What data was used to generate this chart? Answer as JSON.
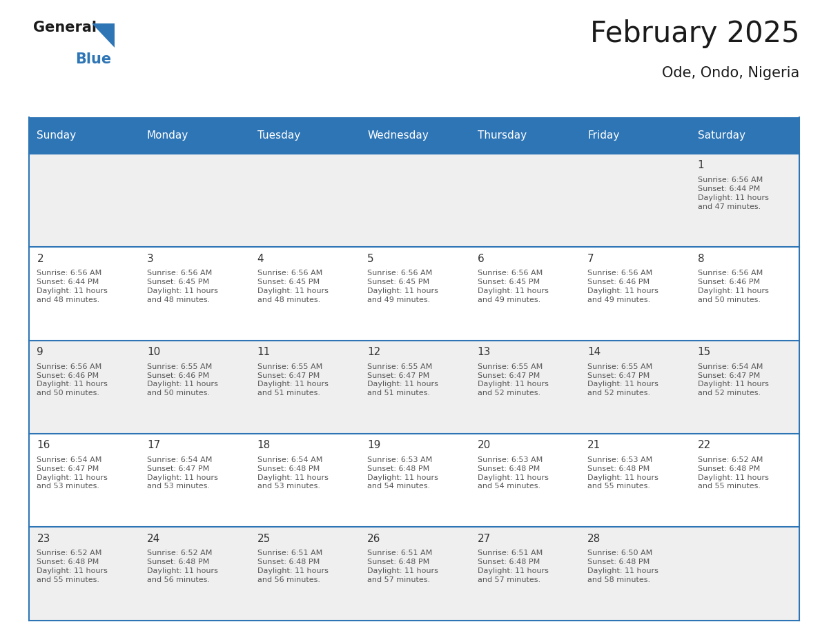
{
  "title": "February 2025",
  "subtitle": "Ode, Ondo, Nigeria",
  "header_color": "#2E75B6",
  "header_text_color": "#FFFFFF",
  "day_names": [
    "Sunday",
    "Monday",
    "Tuesday",
    "Wednesday",
    "Thursday",
    "Friday",
    "Saturday"
  ],
  "bg_color": "#FFFFFF",
  "cell_bg_even": "#EFEFEF",
  "cell_bg_odd": "#FFFFFF",
  "grid_line_color": "#2E75B6",
  "day_number_color": "#333333",
  "text_color": "#555555",
  "calendar": [
    [
      {
        "day": null,
        "sunrise": null,
        "sunset": null,
        "daylight": null
      },
      {
        "day": null,
        "sunrise": null,
        "sunset": null,
        "daylight": null
      },
      {
        "day": null,
        "sunrise": null,
        "sunset": null,
        "daylight": null
      },
      {
        "day": null,
        "sunrise": null,
        "sunset": null,
        "daylight": null
      },
      {
        "day": null,
        "sunrise": null,
        "sunset": null,
        "daylight": null
      },
      {
        "day": null,
        "sunrise": null,
        "sunset": null,
        "daylight": null
      },
      {
        "day": 1,
        "sunrise": "6:56 AM",
        "sunset": "6:44 PM",
        "daylight": "11 hours and 47 minutes."
      }
    ],
    [
      {
        "day": 2,
        "sunrise": "6:56 AM",
        "sunset": "6:44 PM",
        "daylight": "11 hours and 48 minutes."
      },
      {
        "day": 3,
        "sunrise": "6:56 AM",
        "sunset": "6:45 PM",
        "daylight": "11 hours and 48 minutes."
      },
      {
        "day": 4,
        "sunrise": "6:56 AM",
        "sunset": "6:45 PM",
        "daylight": "11 hours and 48 minutes."
      },
      {
        "day": 5,
        "sunrise": "6:56 AM",
        "sunset": "6:45 PM",
        "daylight": "11 hours and 49 minutes."
      },
      {
        "day": 6,
        "sunrise": "6:56 AM",
        "sunset": "6:45 PM",
        "daylight": "11 hours and 49 minutes."
      },
      {
        "day": 7,
        "sunrise": "6:56 AM",
        "sunset": "6:46 PM",
        "daylight": "11 hours and 49 minutes."
      },
      {
        "day": 8,
        "sunrise": "6:56 AM",
        "sunset": "6:46 PM",
        "daylight": "11 hours and 50 minutes."
      }
    ],
    [
      {
        "day": 9,
        "sunrise": "6:56 AM",
        "sunset": "6:46 PM",
        "daylight": "11 hours and 50 minutes."
      },
      {
        "day": 10,
        "sunrise": "6:55 AM",
        "sunset": "6:46 PM",
        "daylight": "11 hours and 50 minutes."
      },
      {
        "day": 11,
        "sunrise": "6:55 AM",
        "sunset": "6:47 PM",
        "daylight": "11 hours and 51 minutes."
      },
      {
        "day": 12,
        "sunrise": "6:55 AM",
        "sunset": "6:47 PM",
        "daylight": "11 hours and 51 minutes."
      },
      {
        "day": 13,
        "sunrise": "6:55 AM",
        "sunset": "6:47 PM",
        "daylight": "11 hours and 52 minutes."
      },
      {
        "day": 14,
        "sunrise": "6:55 AM",
        "sunset": "6:47 PM",
        "daylight": "11 hours and 52 minutes."
      },
      {
        "day": 15,
        "sunrise": "6:54 AM",
        "sunset": "6:47 PM",
        "daylight": "11 hours and 52 minutes."
      }
    ],
    [
      {
        "day": 16,
        "sunrise": "6:54 AM",
        "sunset": "6:47 PM",
        "daylight": "11 hours and 53 minutes."
      },
      {
        "day": 17,
        "sunrise": "6:54 AM",
        "sunset": "6:47 PM",
        "daylight": "11 hours and 53 minutes."
      },
      {
        "day": 18,
        "sunrise": "6:54 AM",
        "sunset": "6:48 PM",
        "daylight": "11 hours and 53 minutes."
      },
      {
        "day": 19,
        "sunrise": "6:53 AM",
        "sunset": "6:48 PM",
        "daylight": "11 hours and 54 minutes."
      },
      {
        "day": 20,
        "sunrise": "6:53 AM",
        "sunset": "6:48 PM",
        "daylight": "11 hours and 54 minutes."
      },
      {
        "day": 21,
        "sunrise": "6:53 AM",
        "sunset": "6:48 PM",
        "daylight": "11 hours and 55 minutes."
      },
      {
        "day": 22,
        "sunrise": "6:52 AM",
        "sunset": "6:48 PM",
        "daylight": "11 hours and 55 minutes."
      }
    ],
    [
      {
        "day": 23,
        "sunrise": "6:52 AM",
        "sunset": "6:48 PM",
        "daylight": "11 hours and 55 minutes."
      },
      {
        "day": 24,
        "sunrise": "6:52 AM",
        "sunset": "6:48 PM",
        "daylight": "11 hours and 56 minutes."
      },
      {
        "day": 25,
        "sunrise": "6:51 AM",
        "sunset": "6:48 PM",
        "daylight": "11 hours and 56 minutes."
      },
      {
        "day": 26,
        "sunrise": "6:51 AM",
        "sunset": "6:48 PM",
        "daylight": "11 hours and 57 minutes."
      },
      {
        "day": 27,
        "sunrise": "6:51 AM",
        "sunset": "6:48 PM",
        "daylight": "11 hours and 57 minutes."
      },
      {
        "day": 28,
        "sunrise": "6:50 AM",
        "sunset": "6:48 PM",
        "daylight": "11 hours and 58 minutes."
      },
      {
        "day": null,
        "sunrise": null,
        "sunset": null,
        "daylight": null
      }
    ]
  ]
}
